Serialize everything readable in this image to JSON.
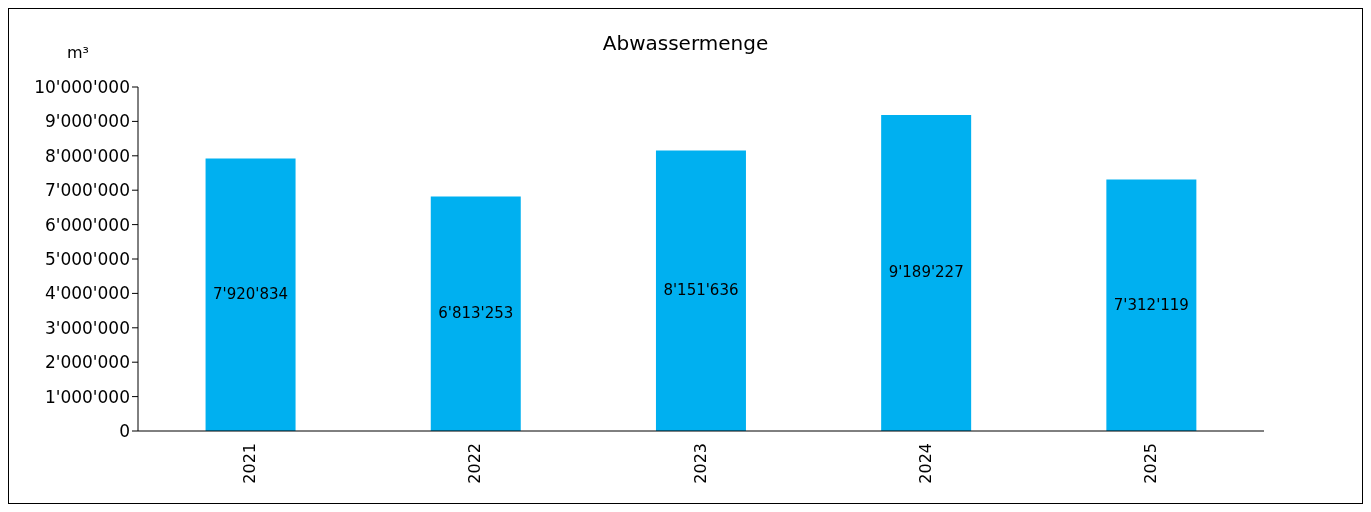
{
  "chart_data": {
    "type": "bar",
    "title": "Abwassermenge",
    "ylabel": "m³",
    "categories": [
      "2021",
      "2022",
      "2023",
      "2024",
      "2025"
    ],
    "values": [
      7920834,
      6813253,
      8151636,
      9189227,
      7312119
    ],
    "value_labels": [
      "7'920'834",
      "6'813'253",
      "8'151'636",
      "9'189'227",
      "7'312'119"
    ],
    "color": "#00b0f0",
    "ylim": [
      0,
      10000000
    ],
    "yticks": [
      {
        "value": 0,
        "label": "0"
      },
      {
        "value": 1000000,
        "label": "1'000'000"
      },
      {
        "value": 2000000,
        "label": "2'000'000"
      },
      {
        "value": 3000000,
        "label": "3'000'000"
      },
      {
        "value": 4000000,
        "label": "4'000'000"
      },
      {
        "value": 5000000,
        "label": "5'000'000"
      },
      {
        "value": 6000000,
        "label": "6'000'000"
      },
      {
        "value": 7000000,
        "label": "7'000'000"
      },
      {
        "value": 8000000,
        "label": "8'000'000"
      },
      {
        "value": 9000000,
        "label": "9'000'000"
      },
      {
        "value": 10000000,
        "label": "10'000'000"
      }
    ],
    "grid": false,
    "legend": false
  }
}
